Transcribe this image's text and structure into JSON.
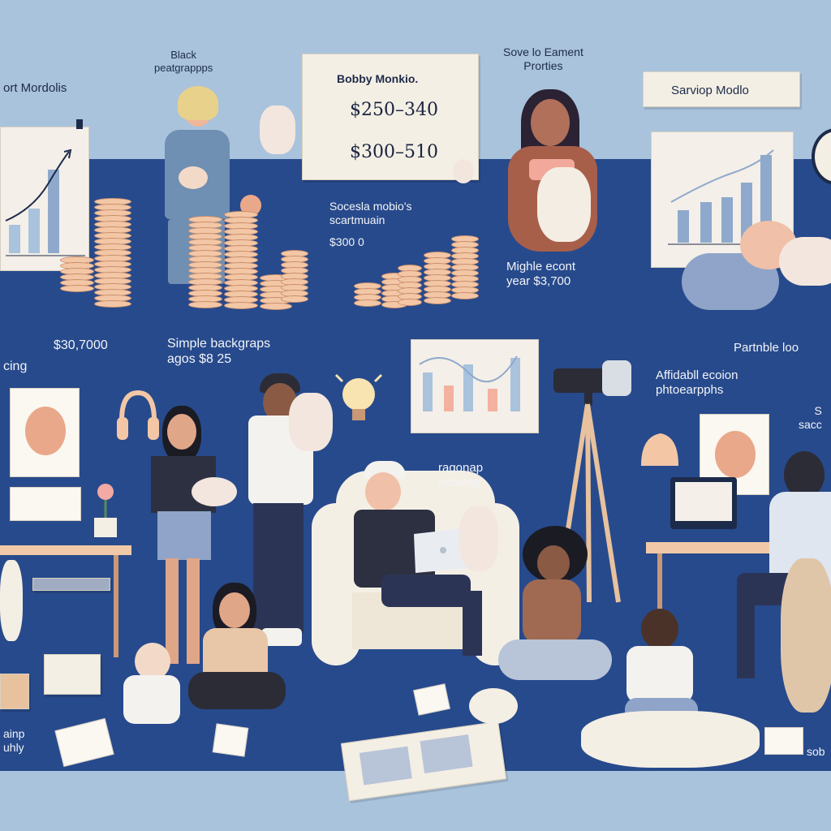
{
  "labels": {
    "top_left": "ort Mordolis",
    "black_backgrounds": "Black\npeatgrappps",
    "card_title": "Bobby Monkio.",
    "card_price_1": "$250–340",
    "card_price_2": "$300–510",
    "sove_element": "Sove lo Eament\nProrties",
    "startup_model": "Sarviop Modlo",
    "social_media": "Socesla mobio's\nscartmuain",
    "social_price": "$300 0",
    "middle_account": "Mighle econt\nyear $3,700",
    "price_30000": "$30,7000",
    "ring": "cing",
    "simple_backdrops": "Simple backgraps\nagos $8 25",
    "portable_tools": "Partnble loo",
    "affordable_session": "Affidabll ecoion\nphtoearpphs",
    "side_sacc": "S\nsacc",
    "rapgap_booking": "ragonap\nsooking",
    "shop_bottom": "ainp\nuhly",
    "sob": "sob"
  },
  "colors": {
    "sky": "#a9c3dc",
    "floor": "#274a8c",
    "card": "#f4efe4",
    "coin": "#f3c7a6",
    "ink": "#1d2b4a"
  },
  "icons": [
    "lightbulb-icon",
    "headphones-icon",
    "camera-icon",
    "laptop-icon",
    "lamp-icon",
    "flower-icon"
  ]
}
